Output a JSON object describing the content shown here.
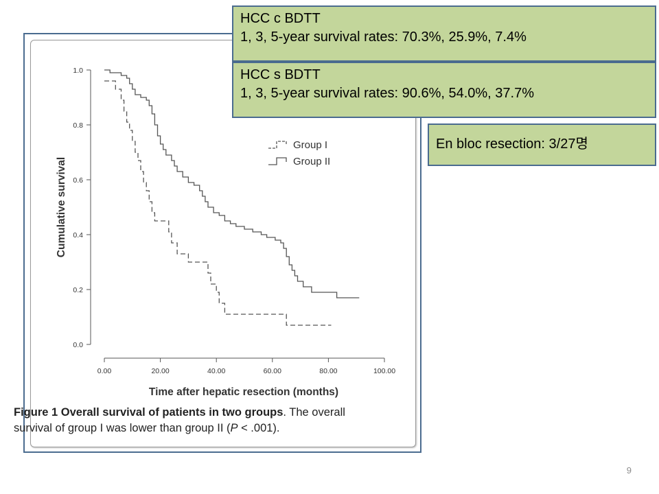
{
  "callouts": {
    "hcc_c": {
      "title": "HCC c BDTT",
      "rates": "1, 3, 5-year survival rates: 70.3%, 25.9%, 7.4%"
    },
    "hcc_s": {
      "title": "HCC s BDTT",
      "rates": "1, 3, 5-year survival rates: 90.6%, 54.0%, 37.7%"
    },
    "en_bloc": "En bloc resection: 3/27명"
  },
  "figure": {
    "caption_bold": "Figure 1 Overall survival of patients in two groups",
    "caption_rest": ". The overall survival of group I was lower than group II (P < .001).",
    "caption_line2_start": "survival of group I was lower than group II ("
  },
  "page_number": "9",
  "chart_data": {
    "type": "line",
    "xlabel": "Time after hepatic resection (months)",
    "ylabel": "Cumulative survival",
    "xlim": [
      0,
      100
    ],
    "ylim": [
      0,
      1
    ],
    "x_ticks": [
      "0.00",
      "20.00",
      "40.00",
      "60.00",
      "80.00",
      "100.00"
    ],
    "y_ticks": [
      "0.0",
      "0.2",
      "0.4",
      "0.6",
      "0.8",
      "1.0"
    ],
    "legend_position": "top-right",
    "step": true,
    "series": [
      {
        "name": "Group I",
        "line_style": "dashed",
        "color": "#555555",
        "points": [
          [
            0,
            0.96
          ],
          [
            4,
            0.96
          ],
          [
            4,
            0.93
          ],
          [
            6,
            0.93
          ],
          [
            6,
            0.89
          ],
          [
            7,
            0.89
          ],
          [
            7,
            0.85
          ],
          [
            8,
            0.85
          ],
          [
            8,
            0.81
          ],
          [
            9,
            0.81
          ],
          [
            9,
            0.78
          ],
          [
            10,
            0.78
          ],
          [
            10,
            0.74
          ],
          [
            11,
            0.74
          ],
          [
            11,
            0.7
          ],
          [
            12,
            0.7
          ],
          [
            12,
            0.67
          ],
          [
            13,
            0.67
          ],
          [
            13,
            0.63
          ],
          [
            14,
            0.63
          ],
          [
            14,
            0.59
          ],
          [
            15,
            0.59
          ],
          [
            15,
            0.56
          ],
          [
            16,
            0.56
          ],
          [
            16,
            0.52
          ],
          [
            17,
            0.52
          ],
          [
            17,
            0.48
          ],
          [
            18,
            0.48
          ],
          [
            18,
            0.45
          ],
          [
            23,
            0.45
          ],
          [
            23,
            0.41
          ],
          [
            24,
            0.41
          ],
          [
            24,
            0.37
          ],
          [
            26,
            0.37
          ],
          [
            26,
            0.33
          ],
          [
            30,
            0.33
          ],
          [
            30,
            0.3
          ],
          [
            37,
            0.3
          ],
          [
            37,
            0.26
          ],
          [
            38,
            0.26
          ],
          [
            38,
            0.22
          ],
          [
            40,
            0.22
          ],
          [
            40,
            0.19
          ],
          [
            41,
            0.19
          ],
          [
            41,
            0.15
          ],
          [
            43,
            0.15
          ],
          [
            43,
            0.11
          ],
          [
            65,
            0.11
          ],
          [
            65,
            0.07
          ],
          [
            81,
            0.07
          ]
        ]
      },
      {
        "name": "Group II",
        "line_style": "solid",
        "color": "#555555",
        "points": [
          [
            0,
            1.0
          ],
          [
            2,
            1.0
          ],
          [
            2,
            0.99
          ],
          [
            6,
            0.99
          ],
          [
            6,
            0.98
          ],
          [
            8,
            0.98
          ],
          [
            8,
            0.97
          ],
          [
            9,
            0.97
          ],
          [
            9,
            0.95
          ],
          [
            10,
            0.95
          ],
          [
            10,
            0.93
          ],
          [
            11,
            0.93
          ],
          [
            11,
            0.91
          ],
          [
            13,
            0.91
          ],
          [
            13,
            0.9
          ],
          [
            15,
            0.9
          ],
          [
            15,
            0.89
          ],
          [
            16,
            0.89
          ],
          [
            16,
            0.87
          ],
          [
            17,
            0.87
          ],
          [
            17,
            0.84
          ],
          [
            18,
            0.84
          ],
          [
            18,
            0.8
          ],
          [
            19,
            0.8
          ],
          [
            19,
            0.76
          ],
          [
            20,
            0.76
          ],
          [
            20,
            0.73
          ],
          [
            21,
            0.73
          ],
          [
            21,
            0.71
          ],
          [
            22,
            0.71
          ],
          [
            22,
            0.69
          ],
          [
            24,
            0.69
          ],
          [
            24,
            0.67
          ],
          [
            25,
            0.67
          ],
          [
            25,
            0.65
          ],
          [
            26,
            0.65
          ],
          [
            26,
            0.63
          ],
          [
            28,
            0.63
          ],
          [
            28,
            0.61
          ],
          [
            30,
            0.61
          ],
          [
            30,
            0.59
          ],
          [
            32,
            0.59
          ],
          [
            32,
            0.58
          ],
          [
            34,
            0.58
          ],
          [
            34,
            0.56
          ],
          [
            35,
            0.56
          ],
          [
            35,
            0.54
          ],
          [
            36,
            0.54
          ],
          [
            36,
            0.52
          ],
          [
            37,
            0.52
          ],
          [
            37,
            0.5
          ],
          [
            39,
            0.5
          ],
          [
            39,
            0.48
          ],
          [
            41,
            0.48
          ],
          [
            41,
            0.47
          ],
          [
            43,
            0.47
          ],
          [
            43,
            0.45
          ],
          [
            45,
            0.45
          ],
          [
            45,
            0.44
          ],
          [
            47,
            0.44
          ],
          [
            47,
            0.43
          ],
          [
            50,
            0.43
          ],
          [
            50,
            0.42
          ],
          [
            53,
            0.42
          ],
          [
            53,
            0.41
          ],
          [
            56,
            0.41
          ],
          [
            56,
            0.4
          ],
          [
            58,
            0.4
          ],
          [
            58,
            0.39
          ],
          [
            61,
            0.39
          ],
          [
            61,
            0.38
          ],
          [
            63,
            0.38
          ],
          [
            63,
            0.37
          ],
          [
            64,
            0.37
          ],
          [
            64,
            0.35
          ],
          [
            65,
            0.35
          ],
          [
            65,
            0.32
          ],
          [
            66,
            0.32
          ],
          [
            66,
            0.29
          ],
          [
            67,
            0.29
          ],
          [
            67,
            0.27
          ],
          [
            68,
            0.27
          ],
          [
            68,
            0.25
          ],
          [
            69,
            0.25
          ],
          [
            69,
            0.23
          ],
          [
            71,
            0.23
          ],
          [
            71,
            0.21
          ],
          [
            74,
            0.21
          ],
          [
            74,
            0.19
          ],
          [
            83,
            0.19
          ],
          [
            83,
            0.17
          ],
          [
            91,
            0.17
          ]
        ]
      }
    ]
  }
}
